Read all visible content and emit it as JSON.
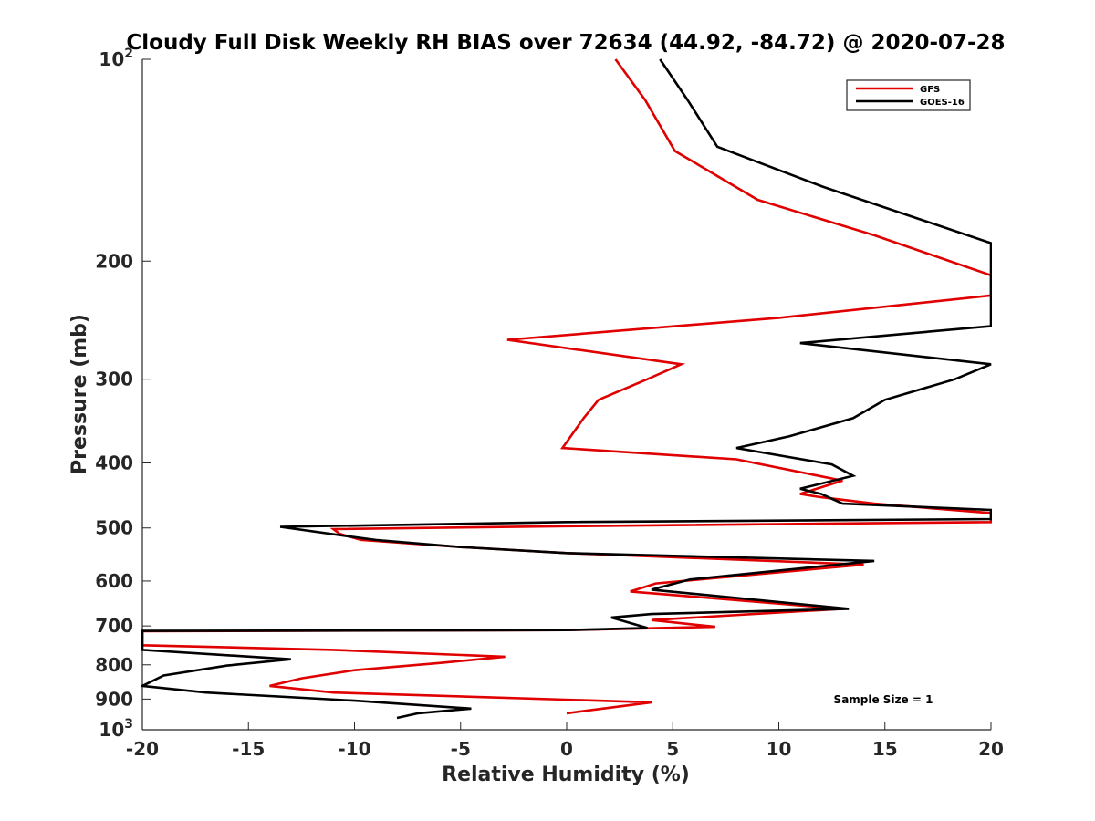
{
  "chart_data": {
    "type": "line",
    "title": "Cloudy Full Disk Weekly RH BIAS over 72634 (44.92, -84.72) @ 2020-07-28",
    "xlabel": "Relative Humidity (%)",
    "ylabel": "Pressure (mb)",
    "xlim": [
      -20,
      20
    ],
    "ylim": [
      100,
      1000
    ],
    "y_scale": "log",
    "y_reversed": true,
    "x_ticks": [
      -20,
      -15,
      -10,
      -5,
      0,
      5,
      10,
      15,
      20
    ],
    "x_tick_labels": [
      "-20",
      "-15",
      "-10",
      "-5",
      "0",
      "5",
      "10",
      "15",
      "20"
    ],
    "y_ticks": [
      100,
      200,
      300,
      400,
      500,
      600,
      700,
      800,
      900,
      1000
    ],
    "y_tick_labels": [
      {
        "base": "10",
        "sup": "2"
      },
      {
        "base": "200",
        "sup": ""
      },
      {
        "base": "300",
        "sup": ""
      },
      {
        "base": "400",
        "sup": ""
      },
      {
        "base": "500",
        "sup": ""
      },
      {
        "base": "600",
        "sup": ""
      },
      {
        "base": "700",
        "sup": ""
      },
      {
        "base": "800",
        "sup": ""
      },
      {
        "base": "900",
        "sup": ""
      },
      {
        "base": "10",
        "sup": "3"
      }
    ],
    "grid": false,
    "legend_position": "top-right",
    "annotation": "Sample Size = 1",
    "series": [
      {
        "name": "GFS",
        "color": "#e00000",
        "points": [
          [
            2.3,
            100
          ],
          [
            3.7,
            115
          ],
          [
            5.1,
            137
          ],
          [
            9.0,
            162
          ],
          [
            14.5,
            183
          ],
          [
            20.0,
            210
          ],
          [
            20.0,
            225
          ],
          [
            10.0,
            243
          ],
          [
            -2.8,
            262
          ],
          [
            5.4,
            285
          ],
          [
            3.8,
            300
          ],
          [
            1.5,
            322
          ],
          [
            0.8,
            343
          ],
          [
            -0.2,
            380
          ],
          [
            8.0,
            395
          ],
          [
            13.0,
            425
          ],
          [
            11.0,
            445
          ],
          [
            12.0,
            450
          ],
          [
            14.5,
            460
          ],
          [
            20.0,
            475
          ],
          [
            20.0,
            490
          ],
          [
            0.0,
            497
          ],
          [
            -11.0,
            502
          ],
          [
            -10.7,
            510
          ],
          [
            -9.7,
            521
          ],
          [
            -5.0,
            534
          ],
          [
            0.0,
            545
          ],
          [
            14.0,
            567
          ],
          [
            4.2,
            605
          ],
          [
            3.0,
            622
          ],
          [
            13.0,
            660
          ],
          [
            4.0,
            686
          ],
          [
            7.0,
            702
          ],
          [
            0.0,
            710
          ],
          [
            -20.0,
            713
          ],
          [
            -20.0,
            748
          ],
          [
            -11.0,
            760
          ],
          [
            -2.9,
            778
          ],
          [
            -6.0,
            795
          ],
          [
            -10.0,
            815
          ],
          [
            -12.5,
            838
          ],
          [
            -14.0,
            860
          ],
          [
            -11.0,
            880
          ],
          [
            4.0,
            910
          ],
          [
            0.0,
            945
          ]
        ]
      },
      {
        "name": "GOES-16",
        "color": "#000000",
        "points": [
          [
            4.4,
            100
          ],
          [
            5.7,
            115
          ],
          [
            7.1,
            135
          ],
          [
            12.1,
            155
          ],
          [
            20.0,
            188
          ],
          [
            20.0,
            250
          ],
          [
            11.0,
            265
          ],
          [
            20.0,
            285
          ],
          [
            18.3,
            300
          ],
          [
            15.0,
            322
          ],
          [
            13.5,
            343
          ],
          [
            10.5,
            365
          ],
          [
            8.0,
            380
          ],
          [
            12.5,
            402
          ],
          [
            13.5,
            418
          ],
          [
            11.0,
            437
          ],
          [
            12.0,
            445
          ],
          [
            13.0,
            460
          ],
          [
            20.0,
            470
          ],
          [
            20.0,
            485
          ],
          [
            0.0,
            490
          ],
          [
            -13.5,
            498
          ],
          [
            -10.0,
            516
          ],
          [
            -9.0,
            521
          ],
          [
            -5.0,
            534
          ],
          [
            0.0,
            545
          ],
          [
            14.5,
            560
          ],
          [
            5.8,
            597
          ],
          [
            4.0,
            618
          ],
          [
            13.3,
            660
          ],
          [
            4.0,
            672
          ],
          [
            2.1,
            680
          ],
          [
            3.8,
            705
          ],
          [
            0.0,
            710
          ],
          [
            -20.0,
            712
          ],
          [
            -20.0,
            760
          ],
          [
            -13.0,
            785
          ],
          [
            -16.0,
            802
          ],
          [
            -19.0,
            830
          ],
          [
            -20.0,
            860
          ],
          [
            -17.0,
            880
          ],
          [
            -10.0,
            905
          ],
          [
            -4.5,
            930
          ],
          [
            -7.0,
            945
          ],
          [
            -8.0,
            960
          ]
        ]
      }
    ]
  }
}
